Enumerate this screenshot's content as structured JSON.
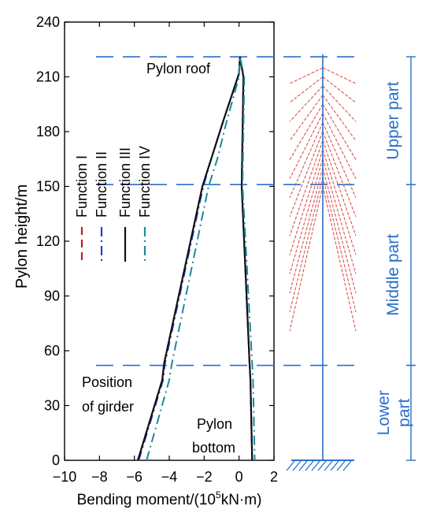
{
  "chart_data": {
    "type": "line",
    "xlabel_prefix": "Bending moment/(10",
    "xlabel_sup": "5",
    "xlabel_suffix": "kN·m)",
    "ylabel": "Pylon height/m",
    "xlim": [
      -10,
      2
    ],
    "ylim": [
      0,
      240
    ],
    "x_ticks": [
      "−10",
      "−8",
      "−6",
      "−4",
      "−2",
      "0",
      "2"
    ],
    "x_tick_values": [
      -10,
      -8,
      -6,
      -4,
      -2,
      0,
      2
    ],
    "y_ticks": [
      "0",
      "30",
      "60",
      "90",
      "120",
      "150",
      "180",
      "210",
      "240"
    ],
    "y_tick_values": [
      0,
      30,
      60,
      90,
      120,
      150,
      180,
      210,
      240
    ],
    "legend_placement": "left, rotated vertical",
    "series": [
      {
        "name": "Function I",
        "color": "#b22222",
        "dash": "dash",
        "points": [
          [
            -5.8,
            0
          ],
          [
            -4.4,
            44
          ],
          [
            -4.3,
            53
          ],
          [
            -2.1,
            150
          ],
          [
            -1.6,
            165
          ],
          [
            -0.9,
            186
          ],
          [
            0,
            212
          ],
          [
            0.05,
            221
          ],
          [
            0.25,
            210
          ],
          [
            0.15,
            150
          ],
          [
            0.6,
            53
          ],
          [
            0.65,
            44
          ],
          [
            0.75,
            0
          ]
        ]
      },
      {
        "name": "Function II",
        "color": "#1f3fd6",
        "dash": "dashdot",
        "points": [
          [
            -5.75,
            0
          ],
          [
            -4.35,
            44
          ],
          [
            -4.25,
            53
          ],
          [
            -2.05,
            150
          ],
          [
            -1.6,
            165
          ],
          [
            -0.9,
            186
          ],
          [
            0,
            212
          ],
          [
            0.05,
            221
          ],
          [
            0.25,
            210
          ],
          [
            0.15,
            150
          ],
          [
            0.6,
            53
          ],
          [
            0.65,
            44
          ],
          [
            0.75,
            0
          ]
        ]
      },
      {
        "name": "Function III",
        "color": "#111111",
        "dash": "solid",
        "points": [
          [
            -5.8,
            0
          ],
          [
            -4.4,
            44
          ],
          [
            -4.3,
            53
          ],
          [
            -2.1,
            150
          ],
          [
            -1.6,
            165
          ],
          [
            -0.9,
            186
          ],
          [
            0,
            212
          ],
          [
            0.05,
            221
          ],
          [
            0.25,
            210
          ],
          [
            0.15,
            150
          ],
          [
            0.6,
            53
          ],
          [
            0.65,
            44
          ],
          [
            0.75,
            0
          ]
        ]
      },
      {
        "name": "Function IV",
        "color": "#1a8a9a",
        "dash": "dashdot",
        "points": [
          [
            -5.3,
            0
          ],
          [
            -4.0,
            44
          ],
          [
            -3.85,
            53
          ],
          [
            -1.75,
            150
          ],
          [
            -1.25,
            165
          ],
          [
            -0.7,
            186
          ],
          [
            0,
            210
          ],
          [
            0.05,
            221
          ],
          [
            0.3,
            210
          ],
          [
            0.2,
            150
          ],
          [
            0.75,
            53
          ],
          [
            0.8,
            44
          ],
          [
            0.9,
            0
          ]
        ]
      }
    ],
    "reference_heights": [
      221,
      151,
      52
    ],
    "annotations": {
      "pylon_roof": "Pylon roof",
      "position_girder_1": "Position",
      "position_girder_2": "of girder",
      "pylon_bottom_1": "Pylon",
      "pylon_bottom_2": "bottom"
    },
    "segments": [
      {
        "label": "Upper part",
        "from": 221,
        "to": 151
      },
      {
        "label": "Middle part",
        "from": 151,
        "to": 52
      },
      {
        "label": "Lower part",
        "from": 52,
        "to": 0
      }
    ],
    "colors": {
      "cables": "#d9534f",
      "structure": "#2a6fc9",
      "axis": "#000000"
    }
  }
}
